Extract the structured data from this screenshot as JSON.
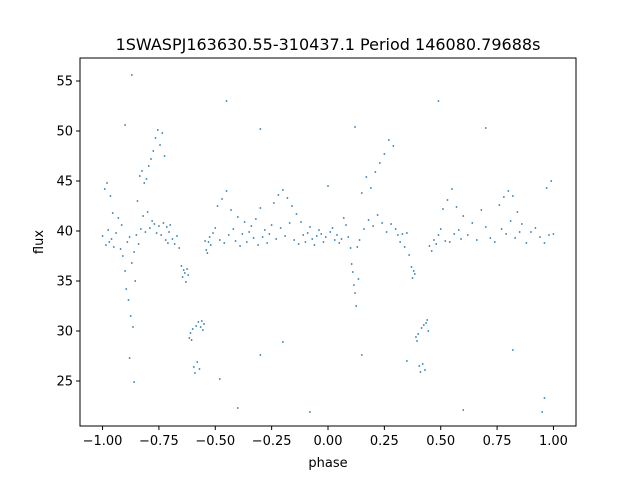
{
  "chart_data": {
    "type": "scatter",
    "title": "1SWASPJ163630.55-310437.1 Period 146080.79688s",
    "xlabel": "phase",
    "ylabel": "flux",
    "xlim": [
      -1.1,
      1.1
    ],
    "ylim": [
      20.5,
      57.3
    ],
    "x_ticks": [
      -1.0,
      -0.75,
      -0.5,
      -0.25,
      0.0,
      0.25,
      0.5,
      0.75,
      1.0
    ],
    "x_tick_labels": [
      "−1.00",
      "−0.75",
      "−0.50",
      "−0.25",
      "0.00",
      "0.25",
      "0.50",
      "0.75",
      "1.00"
    ],
    "y_ticks": [
      25,
      30,
      35,
      40,
      45,
      50,
      55
    ],
    "y_tick_labels": [
      "25",
      "30",
      "35",
      "40",
      "45",
      "50",
      "55"
    ],
    "grid": false,
    "legend": "none",
    "marker_color": "#1f77b4",
    "marker_size": 0.9,
    "series": [
      {
        "name": "",
        "points": [
          [
            -1.0,
            39.5
          ],
          [
            -0.99,
            44.2
          ],
          [
            -0.985,
            38.6
          ],
          [
            -0.98,
            44.8
          ],
          [
            -0.975,
            40.1
          ],
          [
            -0.97,
            38.9
          ],
          [
            -0.965,
            43.5
          ],
          [
            -0.96,
            39.2
          ],
          [
            -0.955,
            41.8
          ],
          [
            -0.95,
            38.4
          ],
          [
            -0.94,
            39.8
          ],
          [
            -0.93,
            41.3
          ],
          [
            -0.92,
            38.2
          ],
          [
            -0.915,
            40.6
          ],
          [
            -0.91,
            37.5
          ],
          [
            -0.9,
            36.0
          ],
          [
            -0.895,
            34.2
          ],
          [
            -0.89,
            38.9
          ],
          [
            -0.885,
            33.1
          ],
          [
            -0.88,
            39.4
          ],
          [
            -0.875,
            31.5
          ],
          [
            -0.87,
            36.8
          ],
          [
            -0.865,
            30.4
          ],
          [
            -0.86,
            37.9
          ],
          [
            -0.855,
            35.0
          ],
          [
            -0.85,
            39.6
          ],
          [
            -0.845,
            43.0
          ],
          [
            -0.84,
            38.7
          ],
          [
            -0.835,
            45.5
          ],
          [
            -0.83,
            40.2
          ],
          [
            -0.825,
            46.0
          ],
          [
            -0.82,
            41.5
          ],
          [
            -0.815,
            44.8
          ],
          [
            -0.81,
            39.9
          ],
          [
            -0.805,
            45.2
          ],
          [
            -0.8,
            41.9
          ],
          [
            -0.795,
            46.5
          ],
          [
            -0.79,
            40.3
          ],
          [
            -0.785,
            47.2
          ],
          [
            -0.78,
            41.0
          ],
          [
            -0.775,
            48.0
          ],
          [
            -0.77,
            40.7
          ],
          [
            -0.765,
            49.3
          ],
          [
            -0.76,
            39.8
          ],
          [
            -0.755,
            50.1
          ],
          [
            -0.75,
            40.5
          ],
          [
            -0.745,
            48.6
          ],
          [
            -0.74,
            39.6
          ],
          [
            -0.735,
            49.8
          ],
          [
            -0.73,
            40.8
          ],
          [
            -0.725,
            47.5
          ],
          [
            -0.72,
            39.1
          ],
          [
            -0.715,
            40.4
          ],
          [
            -0.71,
            38.8
          ],
          [
            -0.705,
            39.9
          ],
          [
            -0.7,
            40.6
          ],
          [
            -0.69,
            39.2
          ],
          [
            -0.68,
            38.7
          ],
          [
            -0.67,
            39.5
          ],
          [
            -0.66,
            38.3
          ],
          [
            -0.65,
            36.5
          ],
          [
            -0.645,
            35.4
          ],
          [
            -0.64,
            36.1
          ],
          [
            -0.635,
            35.8
          ],
          [
            -0.63,
            34.9
          ],
          [
            -0.625,
            36.2
          ],
          [
            -0.62,
            35.6
          ],
          [
            -0.615,
            29.3
          ],
          [
            -0.61,
            29.8
          ],
          [
            -0.605,
            29.1
          ],
          [
            -0.6,
            30.2
          ],
          [
            -0.595,
            26.4
          ],
          [
            -0.59,
            25.8
          ],
          [
            -0.585,
            30.5
          ],
          [
            -0.58,
            26.9
          ],
          [
            -0.575,
            30.9
          ],
          [
            -0.57,
            26.2
          ],
          [
            -0.565,
            30.4
          ],
          [
            -0.56,
            31.0
          ],
          [
            -0.555,
            30.1
          ],
          [
            -0.55,
            30.7
          ],
          [
            -0.545,
            39.0
          ],
          [
            -0.54,
            38.1
          ],
          [
            -0.535,
            37.8
          ],
          [
            -0.53,
            38.9
          ],
          [
            -0.525,
            39.4
          ],
          [
            -0.52,
            38.6
          ],
          [
            -0.51,
            39.8
          ],
          [
            -0.5,
            40.3
          ],
          [
            -0.49,
            42.5
          ],
          [
            -0.48,
            39.1
          ],
          [
            -0.47,
            43.2
          ],
          [
            -0.46,
            38.8
          ],
          [
            -0.45,
            44.0
          ],
          [
            -0.44,
            39.6
          ],
          [
            -0.43,
            42.1
          ],
          [
            -0.42,
            40.2
          ],
          [
            -0.41,
            39.0
          ],
          [
            -0.4,
            41.4
          ],
          [
            -0.39,
            38.5
          ],
          [
            -0.38,
            39.7
          ],
          [
            -0.37,
            40.9
          ],
          [
            -0.36,
            38.9
          ],
          [
            -0.35,
            39.9
          ],
          [
            -0.34,
            40.5
          ],
          [
            -0.33,
            39.3
          ],
          [
            -0.32,
            41.2
          ],
          [
            -0.31,
            38.6
          ],
          [
            -0.3,
            42.3
          ],
          [
            -0.29,
            39.4
          ],
          [
            -0.28,
            40.1
          ],
          [
            -0.27,
            38.8
          ],
          [
            -0.26,
            39.7
          ],
          [
            -0.25,
            40.6
          ],
          [
            -0.24,
            42.8
          ],
          [
            -0.23,
            39.2
          ],
          [
            -0.22,
            43.6
          ],
          [
            -0.21,
            40.3
          ],
          [
            -0.2,
            44.1
          ],
          [
            -0.19,
            39.5
          ],
          [
            -0.18,
            43.3
          ],
          [
            -0.17,
            40.8
          ],
          [
            -0.16,
            42.5
          ],
          [
            -0.15,
            39.1
          ],
          [
            -0.14,
            41.7
          ],
          [
            -0.13,
            38.7
          ],
          [
            -0.12,
            40.9
          ],
          [
            -0.11,
            39.6
          ],
          [
            -0.1,
            38.9
          ],
          [
            -0.09,
            39.8
          ],
          [
            -0.08,
            40.4
          ],
          [
            -0.07,
            39.2
          ],
          [
            -0.06,
            38.6
          ],
          [
            -0.05,
            39.5
          ],
          [
            -0.04,
            40.1
          ],
          [
            -0.03,
            39.7
          ],
          [
            -0.02,
            38.9
          ],
          [
            -0.01,
            39.4
          ],
          [
            0.0,
            44.5
          ],
          [
            0.01,
            39.9
          ],
          [
            0.02,
            40.3
          ],
          [
            0.03,
            39.1
          ],
          [
            0.04,
            39.6
          ],
          [
            0.05,
            38.8
          ],
          [
            0.06,
            39.2
          ],
          [
            0.07,
            41.3
          ],
          [
            0.08,
            40.6
          ],
          [
            0.09,
            39.4
          ],
          [
            0.1,
            38.3
          ],
          [
            0.105,
            36.7
          ],
          [
            0.11,
            35.9
          ],
          [
            0.115,
            34.6
          ],
          [
            0.12,
            33.8
          ],
          [
            0.125,
            32.5
          ],
          [
            0.13,
            38.4
          ],
          [
            0.135,
            35.2
          ],
          [
            0.14,
            39.1
          ],
          [
            0.15,
            43.8
          ],
          [
            0.16,
            40.2
          ],
          [
            0.17,
            45.4
          ],
          [
            0.18,
            41.1
          ],
          [
            0.19,
            44.3
          ],
          [
            0.2,
            40.5
          ],
          [
            0.21,
            45.9
          ],
          [
            0.22,
            41.6
          ],
          [
            0.23,
            46.8
          ],
          [
            0.24,
            40.8
          ],
          [
            0.25,
            47.7
          ],
          [
            0.26,
            39.9
          ],
          [
            0.27,
            49.1
          ],
          [
            0.28,
            40.7
          ],
          [
            0.29,
            48.5
          ],
          [
            0.3,
            40.2
          ],
          [
            0.31,
            39.6
          ],
          [
            0.32,
            38.9
          ],
          [
            0.33,
            39.7
          ],
          [
            0.34,
            38.4
          ],
          [
            0.35,
            39.8
          ],
          [
            0.36,
            37.6
          ],
          [
            0.37,
            36.4
          ],
          [
            0.375,
            35.3
          ],
          [
            0.38,
            36.0
          ],
          [
            0.385,
            35.7
          ],
          [
            0.39,
            29.4
          ],
          [
            0.395,
            29.0
          ],
          [
            0.4,
            29.7
          ],
          [
            0.405,
            26.5
          ],
          [
            0.41,
            25.9
          ],
          [
            0.415,
            30.3
          ],
          [
            0.42,
            26.7
          ],
          [
            0.425,
            30.6
          ],
          [
            0.43,
            26.1
          ],
          [
            0.435,
            30.8
          ],
          [
            0.44,
            31.1
          ],
          [
            0.445,
            30.0
          ],
          [
            0.45,
            38.5
          ],
          [
            0.46,
            38.0
          ],
          [
            0.47,
            39.1
          ],
          [
            0.48,
            38.7
          ],
          [
            0.49,
            39.6
          ],
          [
            0.5,
            40.2
          ],
          [
            0.51,
            42.2
          ],
          [
            0.52,
            39.0
          ],
          [
            0.53,
            43.1
          ],
          [
            0.54,
            38.9
          ],
          [
            0.55,
            44.2
          ],
          [
            0.56,
            39.7
          ],
          [
            0.57,
            42.4
          ],
          [
            0.58,
            40.1
          ],
          [
            0.59,
            39.2
          ],
          [
            0.6,
            41.5
          ],
          [
            0.62,
            39.6
          ],
          [
            0.64,
            40.8
          ],
          [
            0.66,
            39.1
          ],
          [
            0.68,
            42.1
          ],
          [
            0.7,
            40.4
          ],
          [
            0.72,
            39.3
          ],
          [
            0.74,
            38.9
          ],
          [
            0.76,
            42.6
          ],
          [
            0.77,
            40.2
          ],
          [
            0.78,
            43.4
          ],
          [
            0.79,
            39.7
          ],
          [
            0.8,
            44.0
          ],
          [
            0.81,
            41.0
          ],
          [
            0.82,
            43.5
          ],
          [
            0.83,
            39.3
          ],
          [
            0.84,
            41.9
          ],
          [
            0.85,
            39.9
          ],
          [
            0.86,
            40.7
          ],
          [
            0.88,
            38.8
          ],
          [
            0.9,
            39.9
          ],
          [
            0.92,
            40.3
          ],
          [
            0.94,
            39.4
          ],
          [
            0.96,
            38.8
          ],
          [
            0.97,
            44.3
          ],
          [
            0.98,
            39.6
          ],
          [
            0.99,
            45.0
          ],
          [
            1.0,
            39.7
          ],
          [
            -0.87,
            55.6
          ],
          [
            -0.9,
            50.6
          ],
          [
            -0.45,
            53.0
          ],
          [
            -0.3,
            50.2
          ],
          [
            0.12,
            50.4
          ],
          [
            0.49,
            53.0
          ],
          [
            0.7,
            50.3
          ],
          [
            -0.88,
            27.3
          ],
          [
            -0.86,
            24.9
          ],
          [
            -0.4,
            22.3
          ],
          [
            0.35,
            27.0
          ],
          [
            0.6,
            22.1
          ],
          [
            -0.08,
            21.9
          ],
          [
            0.95,
            21.9
          ],
          [
            -0.2,
            28.9
          ],
          [
            0.82,
            28.1
          ],
          [
            -0.3,
            27.6
          ],
          [
            0.15,
            27.6
          ],
          [
            -0.48,
            25.2
          ],
          [
            0.96,
            23.3
          ]
        ]
      }
    ]
  }
}
